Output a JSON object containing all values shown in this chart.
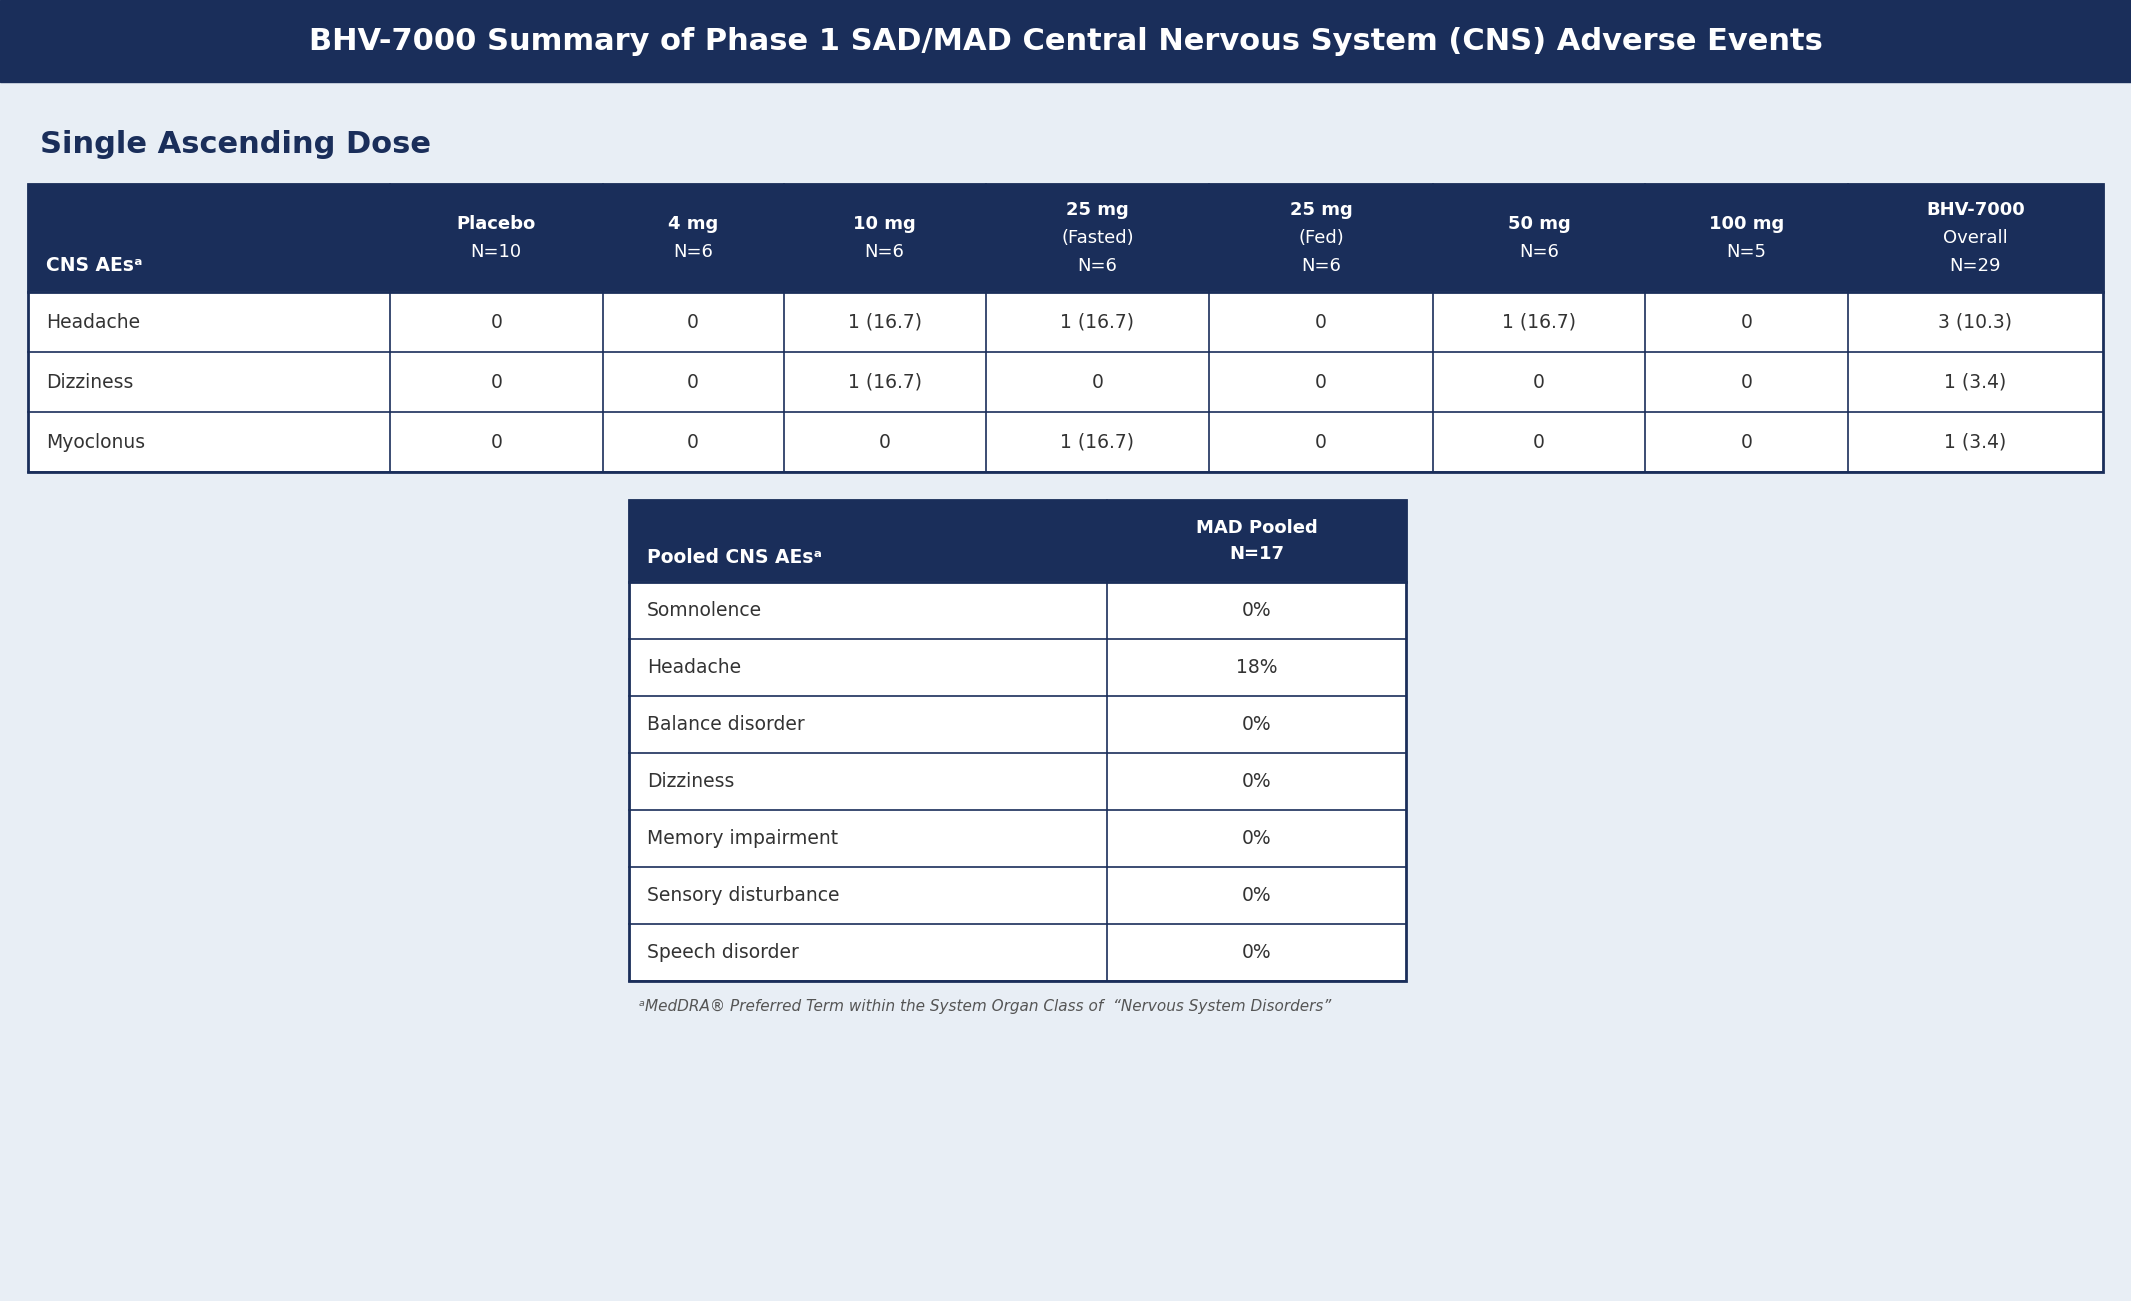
{
  "title": "BHV-7000 Summary of Phase 1 SAD/MAD Central Nervous System (CNS) Adverse Events",
  "title_bg": "#1a2e5a",
  "title_color": "#ffffff",
  "title_fontsize": 22,
  "sad_section_label": "Single Ascending Dose",
  "sad_label_color": "#1a2e5a",
  "sad_label_fontsize": 22,
  "sad_header_bg": "#1a2e5a",
  "sad_header_color": "#ffffff",
  "sad_border_color": "#1a2e5a",
  "sad_cell_color": "#333333",
  "sad_col_headers": [
    [
      "CNS AEsᵃ",
      "",
      ""
    ],
    [
      "Placebo",
      "N=10",
      ""
    ],
    [
      "4 mg",
      "N=6",
      ""
    ],
    [
      "10 mg",
      "N=6",
      ""
    ],
    [
      "25 mg",
      "(Fasted)",
      "N=6"
    ],
    [
      "25 mg",
      "(Fed)",
      "N=6"
    ],
    [
      "50 mg",
      "N=6",
      ""
    ],
    [
      "100 mg",
      "N=5",
      ""
    ],
    [
      "BHV-7000",
      "Overall",
      "N=29"
    ]
  ],
  "sad_rows": [
    [
      "Headache",
      "0",
      "0",
      "1 (16.7)",
      "1 (16.7)",
      "0",
      "1 (16.7)",
      "0",
      "3 (10.3)"
    ],
    [
      "Dizziness",
      "0",
      "0",
      "1 (16.7)",
      "0",
      "0",
      "0",
      "0",
      "1 (3.4)"
    ],
    [
      "Myoclonus",
      "0",
      "0",
      "0",
      "1 (16.7)",
      "0",
      "0",
      "0",
      "1 (3.4)"
    ]
  ],
  "mad_header_bg": "#1a2e5a",
  "mad_header_color": "#ffffff",
  "mad_col_headers": [
    [
      "Pooled CNS AEsᵃ",
      ""
    ],
    [
      "MAD Pooled",
      "N=17"
    ]
  ],
  "mad_rows": [
    [
      "Somnolence",
      "0%"
    ],
    [
      "Headache",
      "18%"
    ],
    [
      "Balance disorder",
      "0%"
    ],
    [
      "Dizziness",
      "0%"
    ],
    [
      "Memory impairment",
      "0%"
    ],
    [
      "Sensory disturbance",
      "0%"
    ],
    [
      "Speech disorder",
      "0%"
    ]
  ],
  "mad_border_color": "#1a2e5a",
  "mad_cell_color": "#333333",
  "footnote": "ᵃMedDRA® Preferred Term within the System Organ Class of  “Nervous System Disorders”",
  "footnote_color": "#555555",
  "footnote_fontsize": 11,
  "bg_color": "#e8eef5"
}
